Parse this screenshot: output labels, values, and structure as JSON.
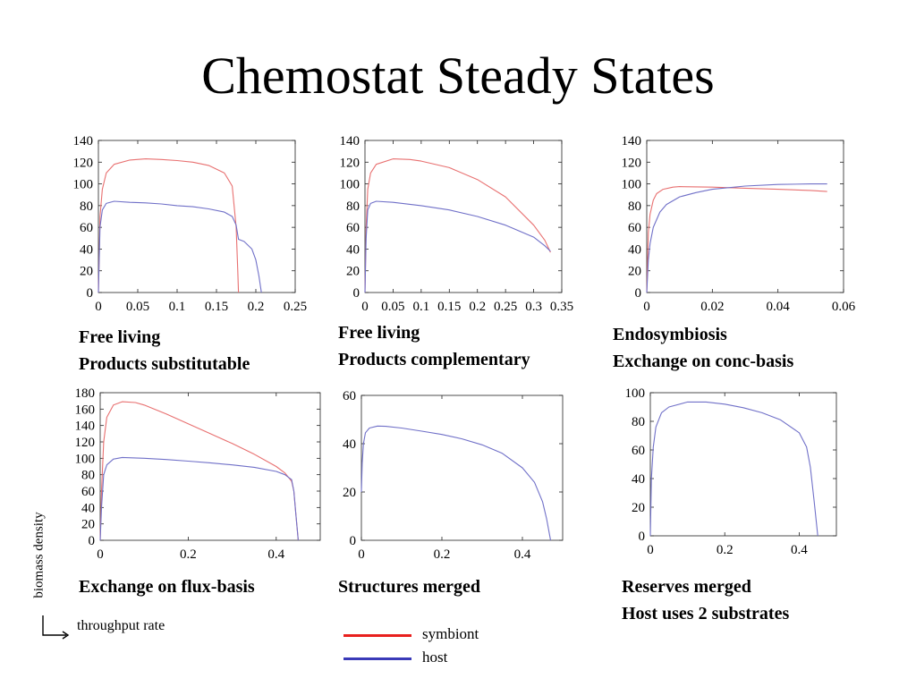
{
  "title": "Chemostat Steady States",
  "y_axis_label": "biomass density",
  "x_axis_label": "throughput rate",
  "legend": [
    {
      "name": "symbiont",
      "color": "#e8201e"
    },
    {
      "name": "host",
      "color": "#3a3ab8"
    }
  ],
  "captions": [
    [
      "Free living",
      "Products substitutable"
    ],
    [
      "Free living",
      "Products complementary"
    ],
    [
      "Endosymbiosis",
      "Exchange on conc-basis"
    ],
    [
      "Exchange on flux-basis"
    ],
    [
      "Structures merged"
    ],
    [
      "Reserves merged",
      "Host uses 2 substrates"
    ]
  ],
  "colors": {
    "symbiont_curve": "#e87070",
    "host_curve": "#7070c8"
  },
  "chart_data": [
    {
      "type": "line",
      "xlim": [
        0,
        0.25
      ],
      "ylim": [
        0,
        140
      ],
      "xticks": [
        0,
        0.05,
        0.1,
        0.15,
        0.2,
        0.25
      ],
      "xtick_labels": [
        "0",
        "0.05",
        "0.1",
        "0.15",
        "0.2",
        "0.25"
      ],
      "yticks": [
        0,
        20,
        40,
        60,
        80,
        100,
        120,
        140
      ],
      "ytick_labels": [
        "0",
        "20",
        "40",
        "60",
        "80",
        "100",
        "120",
        "140"
      ],
      "series": [
        {
          "x": [
            0,
            0.002,
            0.005,
            0.01,
            0.02,
            0.04,
            0.06,
            0.08,
            0.1,
            0.12,
            0.14,
            0.16,
            0.17,
            0.175,
            0.177,
            0.178
          ],
          "y": [
            0,
            70,
            95,
            110,
            118,
            122,
            123,
            122.5,
            121.5,
            120,
            117,
            110,
            98,
            60,
            20,
            0
          ]
        },
        {
          "x": [
            0,
            0.002,
            0.005,
            0.01,
            0.02,
            0.04,
            0.06,
            0.08,
            0.1,
            0.12,
            0.14,
            0.16,
            0.17,
            0.175,
            0.178,
            0.185,
            0.195,
            0.2,
            0.204,
            0.207
          ],
          "y": [
            0,
            60,
            76,
            82,
            84,
            83,
            82.5,
            81.5,
            80,
            79,
            77,
            74,
            70,
            62,
            49,
            47,
            40,
            30,
            15,
            0
          ]
        }
      ]
    },
    {
      "type": "line",
      "xlim": [
        0,
        0.35
      ],
      "ylim": [
        0,
        140
      ],
      "xticks": [
        0,
        0.05,
        0.1,
        0.15,
        0.2,
        0.25,
        0.3,
        0.35
      ],
      "xtick_labels": [
        "0",
        "0.05",
        "0.1",
        "0.15",
        "0.2",
        "0.25",
        "0.3",
        "0.35"
      ],
      "yticks": [
        0,
        20,
        40,
        60,
        80,
        100,
        120,
        140
      ],
      "ytick_labels": [
        "0",
        "20",
        "40",
        "60",
        "80",
        "100",
        "120",
        "140"
      ],
      "series": [
        {
          "x": [
            0,
            0.002,
            0.005,
            0.01,
            0.02,
            0.05,
            0.08,
            0.1,
            0.15,
            0.2,
            0.25,
            0.3,
            0.32,
            0.33
          ],
          "y": [
            0,
            60,
            95,
            110,
            118,
            123,
            122.5,
            121,
            115,
            104,
            88,
            62,
            48,
            37
          ]
        },
        {
          "x": [
            0,
            0.002,
            0.005,
            0.01,
            0.02,
            0.05,
            0.1,
            0.15,
            0.2,
            0.25,
            0.3,
            0.32,
            0.33
          ],
          "y": [
            0,
            50,
            76,
            82,
            84,
            83,
            80,
            76,
            70,
            62,
            51,
            43,
            38
          ]
        }
      ]
    },
    {
      "type": "line",
      "xlim": [
        0,
        0.06
      ],
      "ylim": [
        0,
        140
      ],
      "xticks": [
        0,
        0.02,
        0.04,
        0.06
      ],
      "xtick_labels": [
        "0",
        "0.02",
        "0.04",
        "0.06"
      ],
      "yticks": [
        0,
        20,
        40,
        60,
        80,
        100,
        120,
        140
      ],
      "ytick_labels": [
        "0",
        "20",
        "40",
        "60",
        "80",
        "100",
        "120",
        "140"
      ],
      "series": [
        {
          "x": [
            0,
            0.0005,
            0.001,
            0.002,
            0.003,
            0.005,
            0.008,
            0.01,
            0.02,
            0.03,
            0.04,
            0.05,
            0.055
          ],
          "y": [
            0,
            55,
            72,
            85,
            91,
            95,
            97,
            97.5,
            97,
            96,
            95,
            94,
            93
          ]
        },
        {
          "x": [
            0,
            0.0005,
            0.001,
            0.002,
            0.004,
            0.006,
            0.01,
            0.015,
            0.02,
            0.03,
            0.04,
            0.05,
            0.055
          ],
          "y": [
            0,
            30,
            45,
            60,
            74,
            81,
            88,
            92,
            95,
            98,
            99.5,
            100,
            100
          ]
        }
      ]
    },
    {
      "type": "line",
      "xlim": [
        0,
        0.5
      ],
      "ylim": [
        0,
        180
      ],
      "xticks": [
        0,
        0.2,
        0.4
      ],
      "xtick_labels": [
        "0",
        "0.2",
        "0.4"
      ],
      "yticks": [
        0,
        20,
        40,
        60,
        80,
        100,
        120,
        140,
        160,
        180
      ],
      "ytick_labels": [
        "0",
        "20",
        "40",
        "60",
        "80",
        "100",
        "120",
        "140",
        "160",
        "180"
      ],
      "series": [
        {
          "x": [
            0,
            0.003,
            0.008,
            0.015,
            0.03,
            0.05,
            0.08,
            0.1,
            0.15,
            0.2,
            0.25,
            0.3,
            0.35,
            0.4,
            0.42,
            0.435,
            0.44,
            0.445,
            0.45
          ],
          "y": [
            0,
            60,
            120,
            150,
            165,
            169,
            168,
            165,
            154,
            142,
            130,
            118,
            105,
            90,
            82,
            72,
            60,
            30,
            0
          ]
        },
        {
          "x": [
            0,
            0.003,
            0.008,
            0.015,
            0.03,
            0.05,
            0.1,
            0.15,
            0.2,
            0.25,
            0.3,
            0.35,
            0.4,
            0.42,
            0.435,
            0.44,
            0.445,
            0.45
          ],
          "y": [
            0,
            40,
            80,
            92,
            99,
            101,
            100,
            98.5,
            96.5,
            94.5,
            92,
            89,
            84,
            80,
            74,
            60,
            30,
            0
          ]
        }
      ]
    },
    {
      "type": "line",
      "xlim": [
        0,
        0.5
      ],
      "ylim": [
        0,
        60
      ],
      "xticks": [
        0,
        0.2,
        0.4
      ],
      "xtick_labels": [
        "0",
        "0.2",
        "0.4"
      ],
      "yticks": [
        0,
        20,
        40,
        60
      ],
      "ytick_labels": [
        "0",
        "20",
        "40",
        "60"
      ],
      "series": [
        {
          "x": [
            0,
            0.002,
            0.005,
            0.01,
            0.02,
            0.04,
            0.06,
            0.1,
            0.15,
            0.2,
            0.25,
            0.3,
            0.35,
            0.4,
            0.43,
            0.45,
            0.46,
            0.47
          ],
          "y": [
            20,
            32,
            40,
            44.5,
            46.5,
            47.3,
            47.2,
            46.5,
            45.2,
            43.8,
            42,
            39.5,
            36,
            30,
            24,
            16,
            9,
            0
          ]
        }
      ]
    },
    {
      "type": "line",
      "xlim": [
        0,
        0.5
      ],
      "ylim": [
        0,
        100
      ],
      "xticks": [
        0,
        0.2,
        0.4
      ],
      "xtick_labels": [
        "0",
        "0.2",
        "0.4"
      ],
      "yticks": [
        0,
        20,
        40,
        60,
        80,
        100
      ],
      "ytick_labels": [
        "0",
        "20",
        "40",
        "60",
        "80",
        "100"
      ],
      "series": [
        {
          "x": [
            0,
            0.003,
            0.008,
            0.015,
            0.03,
            0.05,
            0.1,
            0.15,
            0.2,
            0.25,
            0.3,
            0.35,
            0.4,
            0.42,
            0.43,
            0.44,
            0.45
          ],
          "y": [
            0,
            40,
            62,
            76,
            86,
            90,
            93.5,
            93.5,
            92,
            89.5,
            86,
            81,
            72,
            62,
            48,
            25,
            0
          ]
        }
      ]
    }
  ]
}
